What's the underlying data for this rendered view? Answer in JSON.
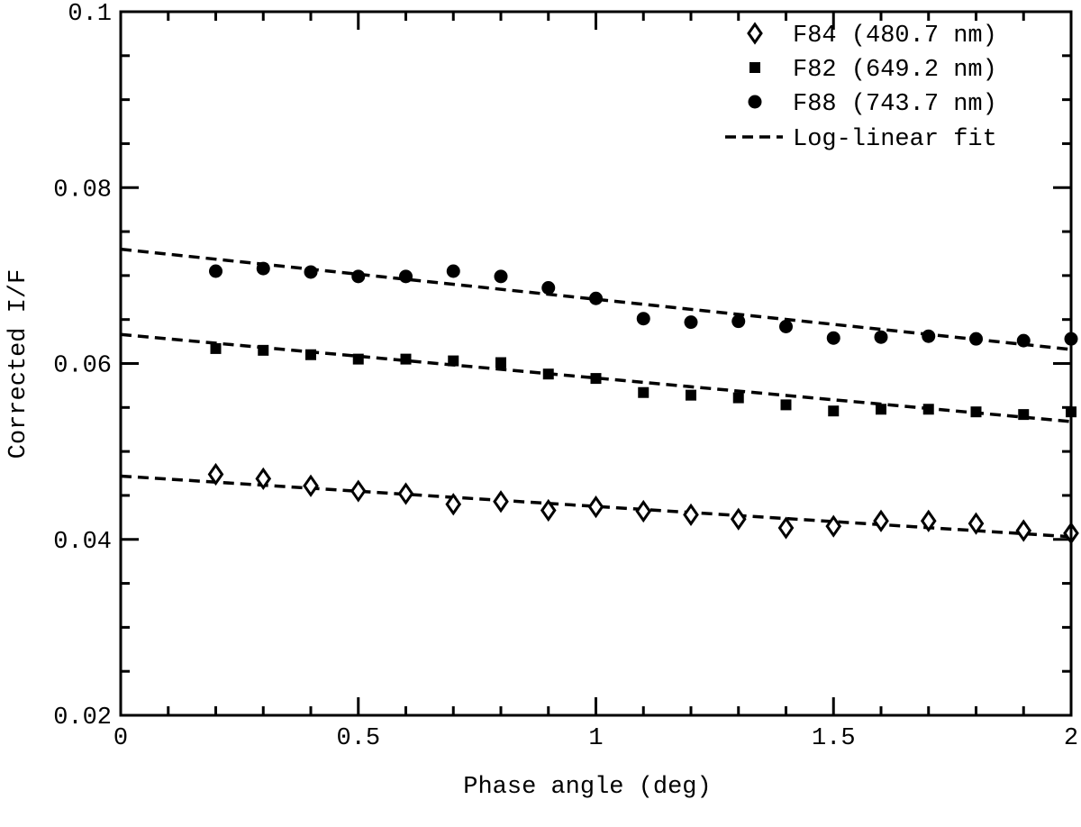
{
  "chart_data": {
    "type": "scatter",
    "title": "",
    "xlabel": "Phase angle (deg)",
    "ylabel": "Corrected I/F",
    "xlim": [
      0,
      2
    ],
    "ylim": [
      0.02,
      0.1
    ],
    "x_ticks": [
      "0",
      "0.5",
      "1",
      "1.5",
      "2"
    ],
    "y_ticks": [
      "0.02",
      "0.04",
      "0.06",
      "0.08",
      "0.1"
    ],
    "grid": false,
    "legend_position": "top-right",
    "series": [
      {
        "name": "F84 (480.7 nm)",
        "marker": "diamond-open",
        "x": [
          0.2,
          0.3,
          0.4,
          0.5,
          0.6,
          0.7,
          0.8,
          0.9,
          1.0,
          1.1,
          1.2,
          1.3,
          1.4,
          1.5,
          1.6,
          1.7,
          1.8,
          1.9,
          2.0
        ],
        "y": [
          0.0474,
          0.0469,
          0.0461,
          0.0455,
          0.0452,
          0.044,
          0.0443,
          0.0433,
          0.0437,
          0.0432,
          0.0428,
          0.0423,
          0.0413,
          0.0415,
          0.0421,
          0.0421,
          0.0418,
          0.041,
          0.0407
        ]
      },
      {
        "name": "F82 (649.2 nm)",
        "marker": "square-filled",
        "x": [
          0.2,
          0.3,
          0.4,
          0.5,
          0.6,
          0.7,
          0.8,
          0.9,
          1.0,
          1.1,
          1.2,
          1.3,
          1.4,
          1.5,
          1.6,
          1.7,
          1.8,
          1.9,
          2.0
        ],
        "y": [
          0.0617,
          0.0615,
          0.061,
          0.0605,
          0.0605,
          0.0603,
          0.0601,
          0.0588,
          0.0583,
          0.0567,
          0.0564,
          0.0561,
          0.0553,
          0.0546,
          0.0548,
          0.0548,
          0.0545,
          0.0542,
          0.0545
        ]
      },
      {
        "name": "F88 (743.7 nm)",
        "marker": "circle-filled",
        "x": [
          0.2,
          0.3,
          0.4,
          0.5,
          0.6,
          0.7,
          0.8,
          0.9,
          1.0,
          1.1,
          1.2,
          1.3,
          1.4,
          1.5,
          1.6,
          1.7,
          1.8,
          1.9,
          2.0
        ],
        "y": [
          0.0705,
          0.0708,
          0.0704,
          0.0699,
          0.0699,
          0.0705,
          0.0699,
          0.0686,
          0.0674,
          0.0651,
          0.0647,
          0.0648,
          0.0642,
          0.0629,
          0.063,
          0.0631,
          0.0628,
          0.0626,
          0.0628
        ]
      }
    ],
    "fits": [
      {
        "for": "F84 (480.7 nm)",
        "x": [
          0,
          2
        ],
        "y": [
          0.0472,
          0.0403
        ]
      },
      {
        "for": "F82 (649.2 nm)",
        "x": [
          0,
          2
        ],
        "y": [
          0.0633,
          0.0534
        ]
      },
      {
        "for": "F88 (743.7 nm)",
        "x": [
          0,
          2
        ],
        "y": [
          0.073,
          0.0616
        ]
      }
    ],
    "fit_legend": "Log-linear fit"
  }
}
